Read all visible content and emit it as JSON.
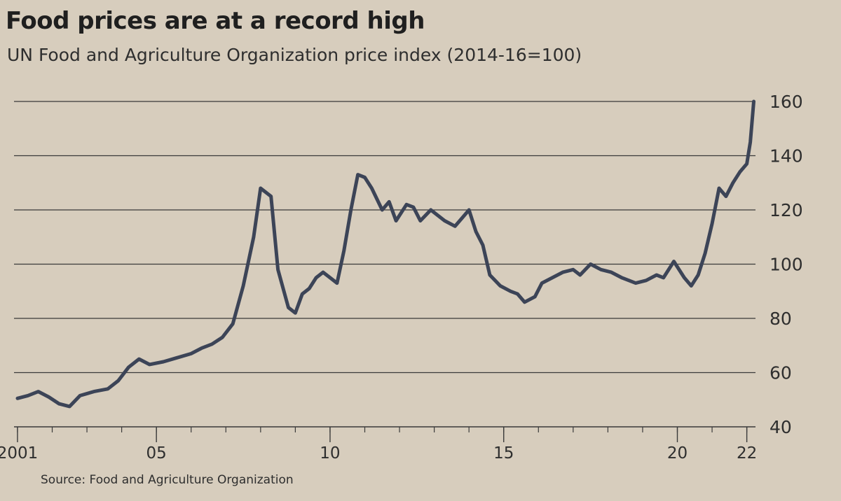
{
  "header": {
    "title": "Food prices are at a record high",
    "subtitle": "UN Food and Agriculture Organization price index (2014-16=100)"
  },
  "footer": {
    "source": "Source: Food and Agriculture Organization"
  },
  "colors": {
    "background": "#d7cdbd",
    "line": "#3c4457",
    "grid": "#3a3a3a",
    "text": "#2b2b2b"
  },
  "chart_data": {
    "type": "line",
    "title": "Food prices are at a record high",
    "subtitle": "UN Food and Agriculture Organization price index (2014-16=100)",
    "xlabel": "",
    "ylabel": "",
    "grid": true,
    "ylim": [
      40,
      160
    ],
    "xlim": [
      2000.9,
      2022.25
    ],
    "y_ticks": [
      {
        "value": 40,
        "label": "40"
      },
      {
        "value": 60,
        "label": "60"
      },
      {
        "value": 80,
        "label": "80"
      },
      {
        "value": 100,
        "label": "100"
      },
      {
        "value": 120,
        "label": "120"
      },
      {
        "value": 140,
        "label": "140"
      },
      {
        "value": 160,
        "label": "160"
      }
    ],
    "x_ticks": [
      {
        "value": 2001,
        "label": "2001"
      },
      {
        "value": 2005,
        "label": "05"
      },
      {
        "value": 2010,
        "label": "10"
      },
      {
        "value": 2015,
        "label": "15"
      },
      {
        "value": 2020,
        "label": "20"
      },
      {
        "value": 2022,
        "label": "22"
      }
    ],
    "series": [
      {
        "x": [
          2001.0,
          2001.3,
          2001.6,
          2001.9,
          2002.2,
          2002.5,
          2002.8,
          2003.2,
          2003.6,
          2003.9,
          2004.2,
          2004.5,
          2004.8,
          2005.2,
          2005.6,
          2006.0,
          2006.3,
          2006.6,
          2006.9,
          2007.2,
          2007.5,
          2007.8,
          2008.0,
          2008.3,
          2008.5,
          2008.8,
          2009.0,
          2009.2,
          2009.4,
          2009.6,
          2009.8,
          2010.0,
          2010.2,
          2010.4,
          2010.6,
          2010.8,
          2011.0,
          2011.2,
          2011.5,
          2011.7,
          2011.9,
          2012.2,
          2012.4,
          2012.6,
          2012.9,
          2013.3,
          2013.6,
          2013.8,
          2014.0,
          2014.2,
          2014.4,
          2014.6,
          2014.9,
          2015.2,
          2015.4,
          2015.6,
          2015.9,
          2016.1,
          2016.4,
          2016.7,
          2017.0,
          2017.2,
          2017.5,
          2017.8,
          2018.1,
          2018.4,
          2018.8,
          2019.1,
          2019.4,
          2019.6,
          2019.9,
          2020.2,
          2020.4,
          2020.6,
          2020.8,
          2021.0,
          2021.2,
          2021.4,
          2021.6,
          2021.8,
          2022.0,
          2022.1,
          2022.2
        ],
        "values": [
          50.5,
          51.5,
          53,
          51,
          48.5,
          47.5,
          51.5,
          53,
          54,
          57,
          62,
          65,
          63,
          64,
          65.5,
          67,
          69,
          70.5,
          73,
          78,
          92,
          110,
          128,
          125,
          98,
          84,
          82,
          89,
          91,
          95,
          97,
          95,
          93,
          105,
          120,
          133,
          132,
          128,
          120,
          123,
          116,
          122,
          121,
          116,
          120,
          116,
          114,
          117,
          120,
          112,
          107,
          96,
          92,
          90,
          89,
          86,
          88,
          93,
          95,
          97,
          98,
          96,
          100,
          98,
          97,
          95,
          93,
          94,
          96,
          95,
          101,
          95,
          92,
          96,
          104,
          115,
          128,
          125,
          130,
          134,
          137,
          145,
          160
        ]
      }
    ]
  }
}
